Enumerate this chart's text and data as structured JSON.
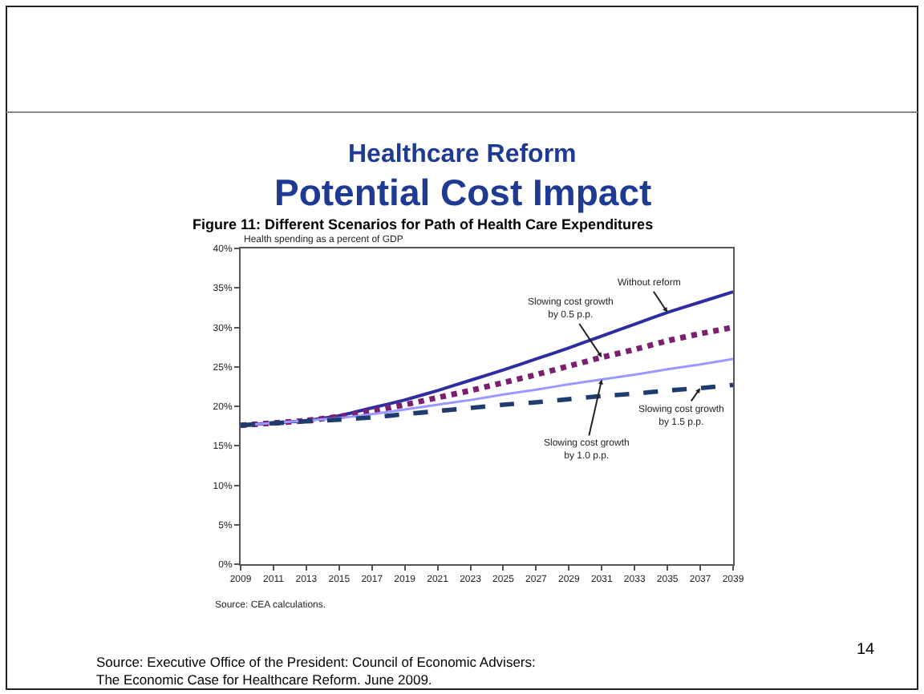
{
  "chart_data": {
    "type": "line",
    "title": "Healthcare Reform",
    "subtitle": "Potential Cost Impact",
    "ylabel": "Health spending as a percent of GDP",
    "annotations": [
      "Figure 11: Different Scenarios for Path of Health Care Expenditures",
      "Source: CEA calculations.",
      "Source: Executive Office of the President: Council of Economic Advisers:\nThe Economic Case for Healthcare Reform. June 2009.",
      "14"
    ],
    "x": [
      2009,
      2013,
      2015,
      2017,
      2019,
      2021,
      2023,
      2025,
      2027,
      2029,
      2031,
      2033,
      2035,
      2037,
      2039
    ],
    "series": [
      {
        "name": "Without reform",
        "color": "#2e2e9e",
        "line_style": "solid",
        "values": [
          17.6,
          18.2,
          18.8,
          19.8,
          20.8,
          22.0,
          23.3,
          24.6,
          26.0,
          27.4,
          28.9,
          30.4,
          31.9,
          33.2,
          34.5
        ]
      },
      {
        "name": "Slowing cost growth\nby 0.5 p.p.",
        "color": "#7b1f6e",
        "line_style": "dotted",
        "values": [
          17.6,
          18.2,
          18.7,
          19.4,
          20.2,
          21.1,
          22.0,
          23.0,
          24.0,
          25.1,
          26.2,
          27.2,
          28.3,
          29.2,
          30.0
        ]
      },
      {
        "name": "Slowing cost growth\nby 1.0 p.p.",
        "color": "#9999ff",
        "line_style": "solid",
        "values": [
          17.6,
          18.2,
          18.5,
          19.0,
          19.6,
          20.2,
          20.8,
          21.5,
          22.1,
          22.8,
          23.4,
          24.0,
          24.7,
          25.3,
          26.0
        ]
      },
      {
        "name": "Slowing cost growth\nby 1.5 p.p.",
        "color": "#1f3c6e",
        "line_style": "dashed",
        "values": [
          17.6,
          18.1,
          18.3,
          18.6,
          19.0,
          19.4,
          19.8,
          20.2,
          20.5,
          20.9,
          21.3,
          21.6,
          22.0,
          22.3,
          22.7
        ]
      }
    ],
    "xlim": [
      2009,
      2039
    ],
    "xticks": [
      2009,
      2011,
      2013,
      2015,
      2017,
      2019,
      2021,
      2023,
      2025,
      2027,
      2029,
      2031,
      2033,
      2035,
      2037,
      2039
    ],
    "ylim": [
      0,
      40
    ],
    "yticks": [
      {
        "value": 0,
        "label": "0%"
      },
      {
        "value": 5,
        "label": "5%"
      },
      {
        "value": 10,
        "label": "10%"
      },
      {
        "value": 15,
        "label": "15%"
      },
      {
        "value": 20,
        "label": "20%"
      },
      {
        "value": 25,
        "label": "25%"
      },
      {
        "value": 30,
        "label": "30%"
      },
      {
        "value": 35,
        "label": "35%"
      },
      {
        "value": 40,
        "label": "40%"
      }
    ],
    "grid": false,
    "legend": false,
    "marker": "none"
  }
}
